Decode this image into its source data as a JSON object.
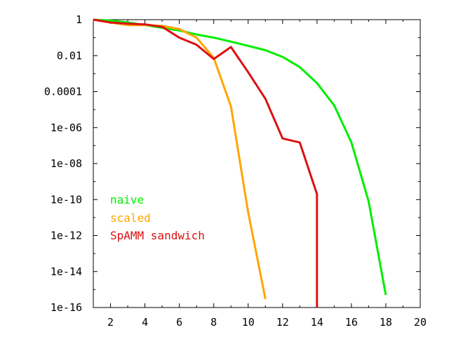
{
  "chart_data": {
    "type": "line",
    "title": "",
    "xlabel": "",
    "ylabel": "",
    "xlim": [
      1,
      20
    ],
    "ylim": [
      1e-16,
      1
    ],
    "yscale": "log",
    "grid": false,
    "legend_position": "bottom-left",
    "x_ticks": [
      2,
      4,
      6,
      8,
      10,
      12,
      14,
      16,
      18,
      20
    ],
    "x_tick_labels": [
      "2",
      "4",
      "6",
      "8",
      "10",
      "12",
      "14",
      "16",
      "18",
      "20"
    ],
    "y_ticks": [
      1,
      0.01,
      0.0001,
      1e-06,
      1e-08,
      1e-10,
      1e-12,
      1e-14,
      1e-16
    ],
    "y_tick_labels": [
      "1",
      "0.01",
      "0.0001",
      "1e-06",
      "1e-08",
      "1e-10",
      "1e-12",
      "1e-14",
      "1e-16"
    ],
    "series": [
      {
        "name": "naive",
        "color": "#00ee00",
        "x": [
          1,
          2,
          3,
          4,
          5,
          6,
          7,
          8,
          9,
          10,
          11,
          12,
          13,
          14,
          15,
          16,
          17,
          18
        ],
        "y": [
          1,
          0.9,
          0.7,
          0.5,
          0.35,
          0.25,
          0.15,
          0.1,
          0.06,
          0.035,
          0.02,
          0.0085,
          0.0023,
          0.0003,
          1.7e-05,
          1.5e-07,
          8e-11,
          5e-16
        ]
      },
      {
        "name": "scaled",
        "color": "#ffa500",
        "x": [
          1,
          2,
          3,
          4,
          5,
          6,
          7,
          8,
          9,
          10,
          11
        ],
        "y": [
          1,
          0.7,
          0.5,
          0.5,
          0.45,
          0.3,
          0.1,
          0.0075,
          1.5e-05,
          2e-11,
          3e-16
        ]
      },
      {
        "name": "SpAMM sandwich",
        "color": "#dd1111",
        "x": [
          1,
          2,
          3,
          4,
          5,
          6,
          7,
          8,
          9,
          10,
          11,
          12,
          13,
          14,
          14
        ],
        "y": [
          1,
          0.7,
          0.6,
          0.55,
          0.4,
          0.1,
          0.04,
          0.0065,
          0.03,
          0.0012,
          4e-05,
          2.5e-07,
          1.5e-07,
          2e-10,
          1e-16
        ]
      }
    ]
  }
}
